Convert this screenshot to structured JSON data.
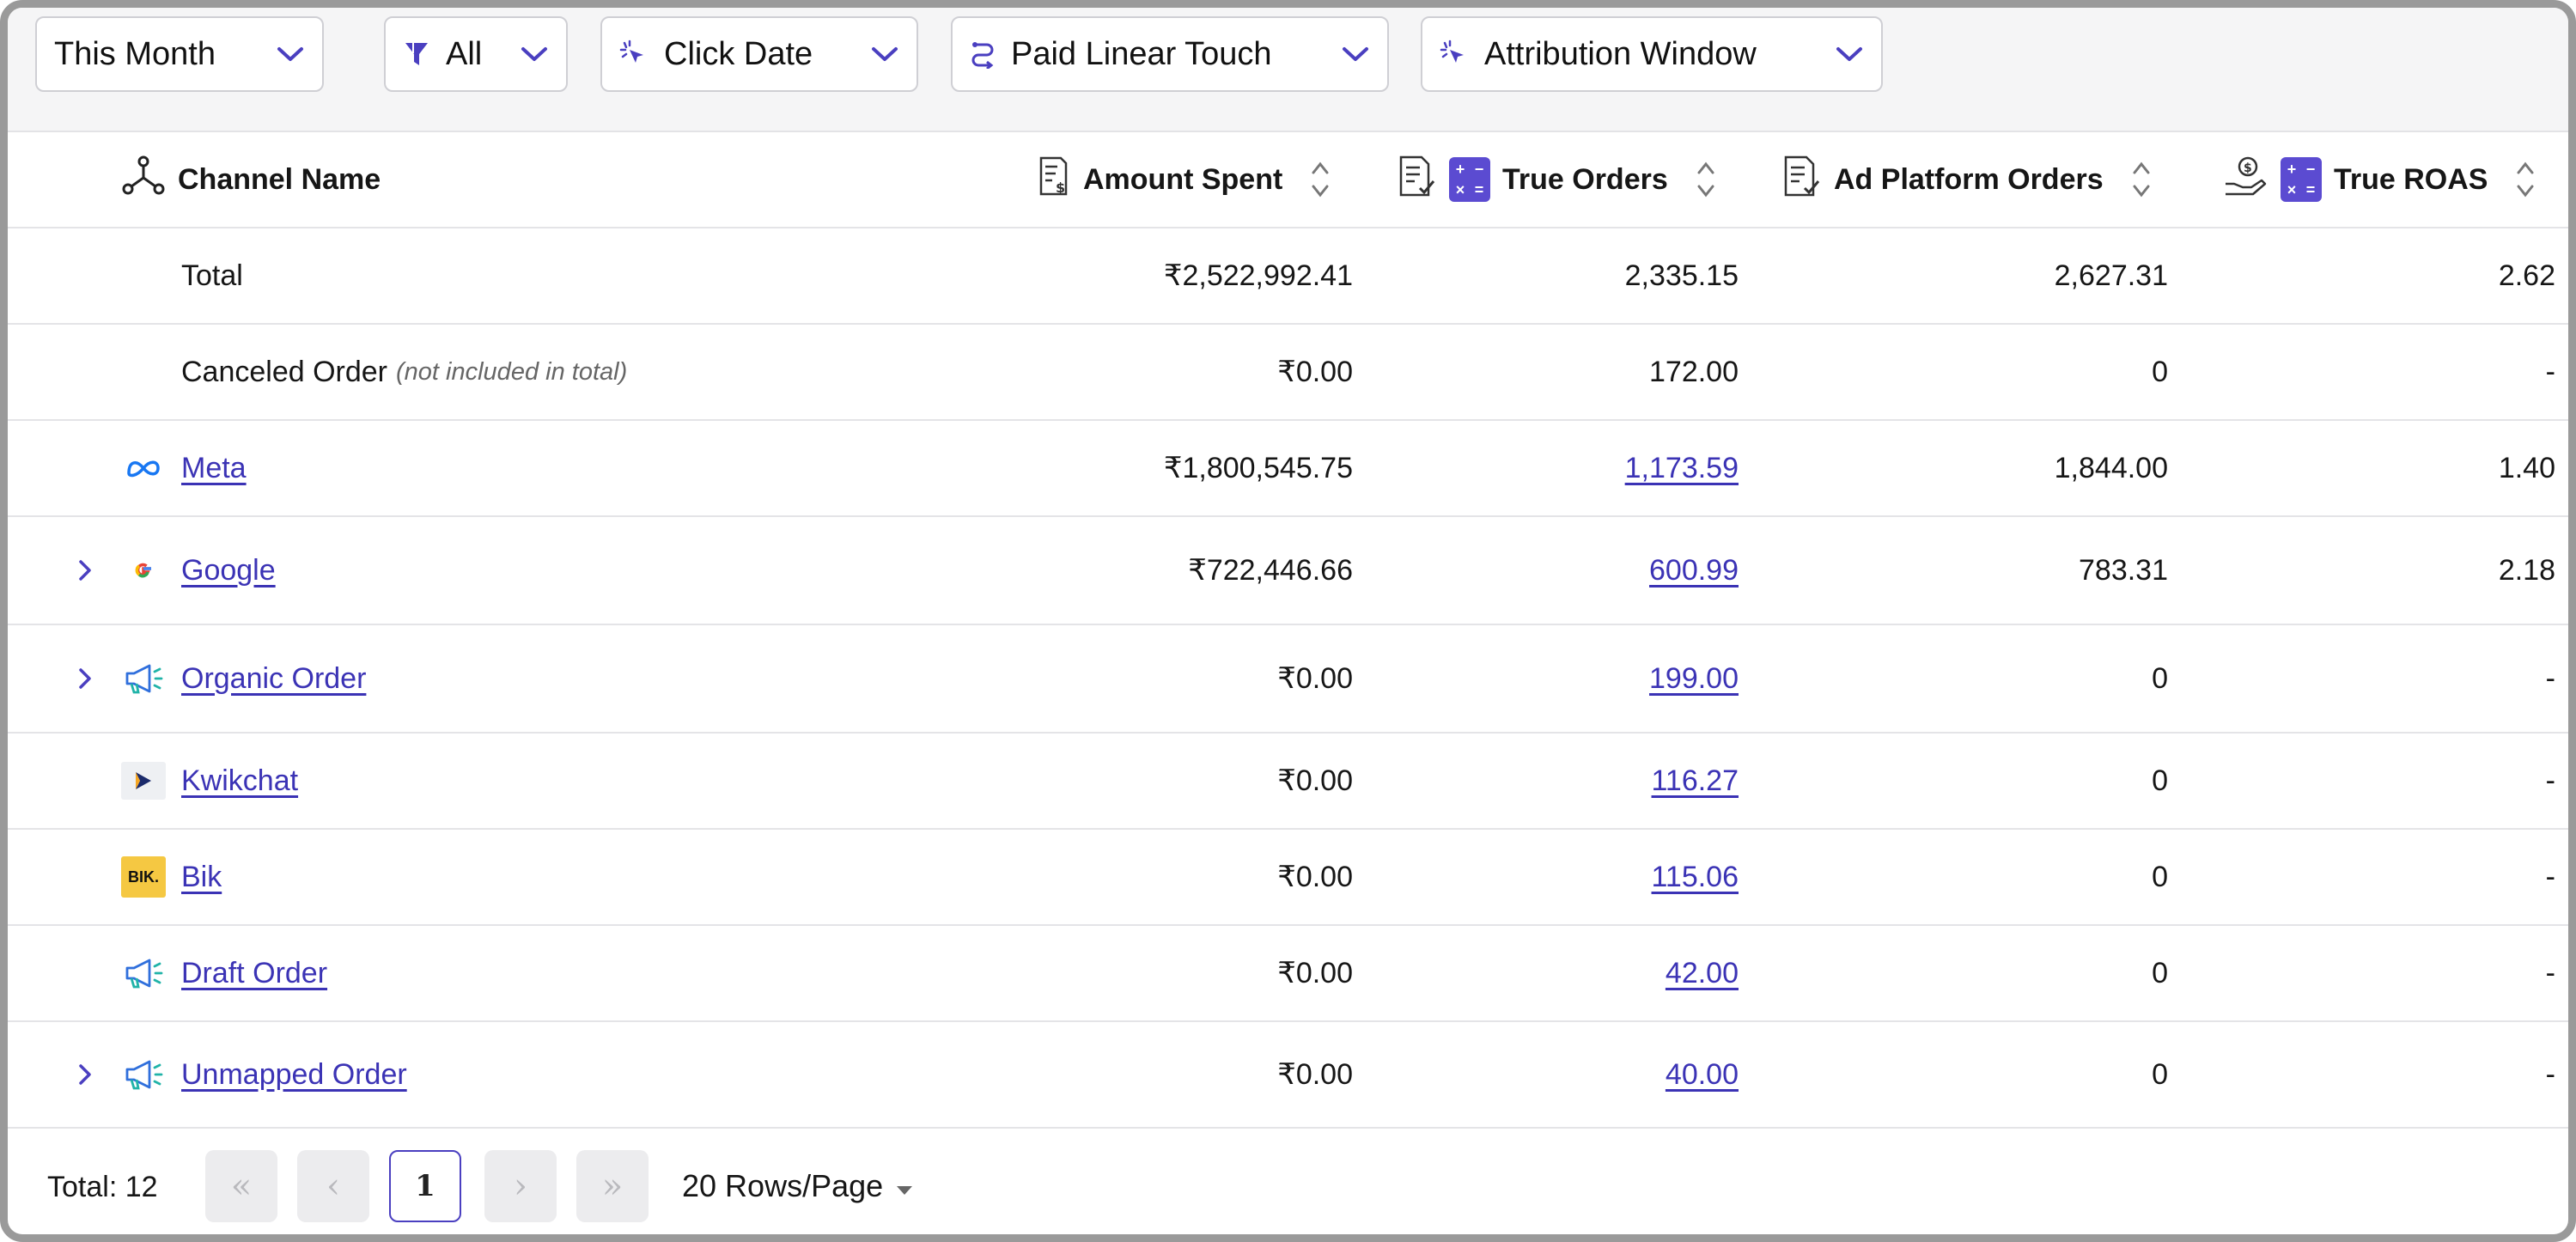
{
  "filters": {
    "date_range": "This Month",
    "channel_filter": "All",
    "date_type": "Click Date",
    "model": "Paid Linear Touch",
    "window": "Attribution Window"
  },
  "columns": {
    "channel": "Channel Name",
    "spent": "Amount Spent",
    "true_orders": "True Orders",
    "ad_orders": "Ad Platform Orders",
    "roas": "True ROAS"
  },
  "summary": {
    "total": {
      "name": "Total",
      "spent": "₹2,522,992.41",
      "true_orders": "2,335.15",
      "ad_orders": "2,627.31",
      "roas": "2.62"
    },
    "canceled": {
      "name": "Canceled Order",
      "note": "(not included in total)",
      "spent": "₹0.00",
      "true_orders": "172.00",
      "ad_orders": "0",
      "roas": "-"
    }
  },
  "rows": [
    {
      "name": "Meta",
      "icon": "meta-icon",
      "spent": "₹1,800,545.75",
      "true_orders": "1,173.59",
      "ad_orders": "1,844.00",
      "roas": "1.40"
    },
    {
      "name": "Google",
      "icon": "google-icon",
      "spent": "₹722,446.66",
      "true_orders": "600.99",
      "ad_orders": "783.31",
      "roas": "2.18"
    },
    {
      "name": "Organic Order",
      "icon": "megaphone-icon",
      "spent": "₹0.00",
      "true_orders": "199.00",
      "ad_orders": "0",
      "roas": "-"
    },
    {
      "name": "Kwikchat",
      "icon": "kwikchat-icon",
      "spent": "₹0.00",
      "true_orders": "116.27",
      "ad_orders": "0",
      "roas": "-"
    },
    {
      "name": "Bik",
      "icon": "bik-icon",
      "logo_text": "BIK.",
      "spent": "₹0.00",
      "true_orders": "115.06",
      "ad_orders": "0",
      "roas": "-"
    },
    {
      "name": "Draft Order",
      "icon": "megaphone-icon",
      "spent": "₹0.00",
      "true_orders": "42.00",
      "ad_orders": "0",
      "roas": "-"
    },
    {
      "name": "Unmapped Order",
      "icon": "megaphone-icon",
      "spent": "₹0.00",
      "true_orders": "40.00",
      "ad_orders": "0",
      "roas": "-"
    }
  ],
  "footer": {
    "total": "Total: 12",
    "first": "«",
    "prev": "‹",
    "page": "1",
    "next": "›",
    "last": "»",
    "rows_per_page": "20 Rows/Page"
  },
  "colors": {
    "accent": "#5b4bd1",
    "link": "#3b33b5",
    "border": "#e4e4e7"
  }
}
